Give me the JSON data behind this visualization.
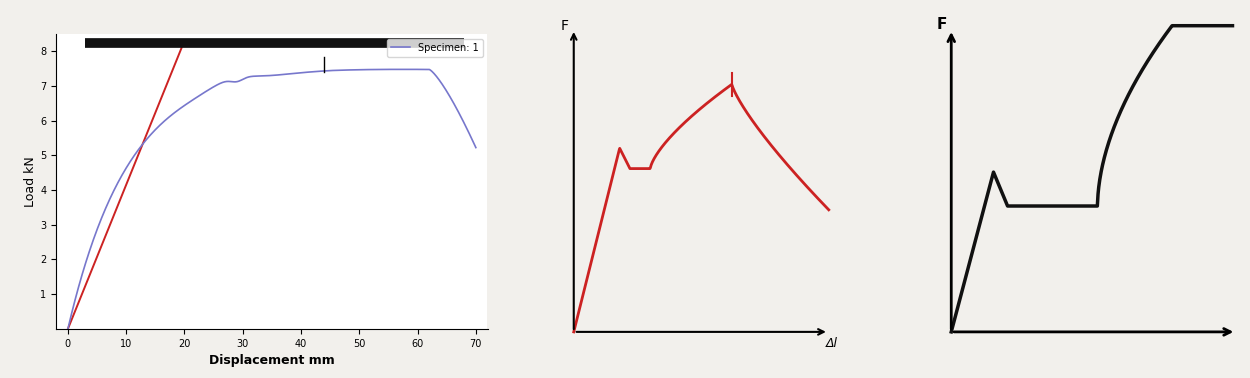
{
  "fig_width": 12.5,
  "fig_height": 3.78,
  "bg_color": "#f2f0ec",
  "subplot1": {
    "xlabel": "Displacement mm",
    "ylabel": "Load kN",
    "xlim": [
      -2,
      72
    ],
    "ylim": [
      0,
      8.5
    ],
    "xticks": [
      0,
      10,
      20,
      30,
      40,
      50,
      60,
      70
    ],
    "yticks": [
      1,
      2,
      3,
      4,
      5,
      6,
      7,
      8
    ],
    "legend_label": "Specimen: 1",
    "legend_color": "#7777cc",
    "red_line_color": "#cc2222",
    "blue_line_color": "#7777cc",
    "bar_color": "#111111",
    "bar_y": 8.25,
    "bar_x_start": 3,
    "bar_x_end": 68,
    "tick_x": 44,
    "tick_y_bottom": 7.4,
    "tick_y_top": 7.85
  },
  "subplot2": {
    "xlabel": "Δl",
    "ylabel": "F",
    "line_color": "#cc2222"
  },
  "subplot3": {
    "ylabel": "F",
    "line_color": "#111111"
  }
}
